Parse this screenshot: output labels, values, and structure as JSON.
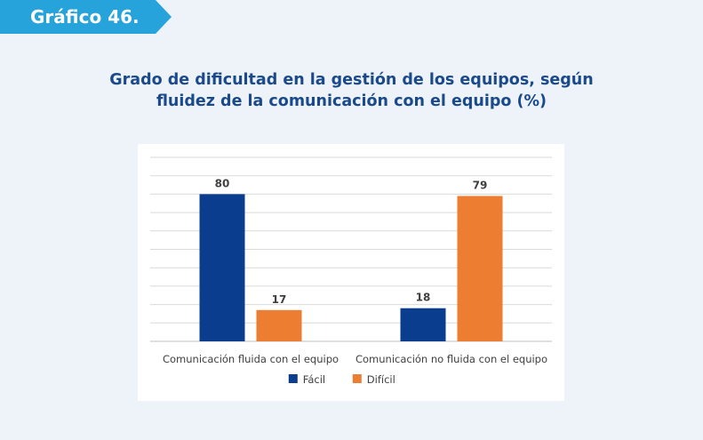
{
  "header": {
    "tag": "Gráfico 46."
  },
  "title_lines": [
    "Grado de dificultad en la gestión de los equipos, según",
    "fluidez de la comunicación con el equipo (%)"
  ],
  "colors": {
    "tag": "#27a3dc",
    "title": "#1a4a8c",
    "facil": "#0b3d8f",
    "dificil": "#ed7d31"
  },
  "chart_data": {
    "type": "bar",
    "categories": [
      "Comunicación fluida con el equipo",
      "Comunicación no fluida con el equipo"
    ],
    "series": [
      {
        "name": "Fácil",
        "values": [
          80,
          18
        ],
        "color": "#0b3d8f"
      },
      {
        "name": "Difícil",
        "values": [
          17,
          79
        ],
        "color": "#ed7d31"
      }
    ],
    "ylim": [
      0,
      100
    ],
    "grid": true,
    "legend_position": "bottom",
    "data_labels": true
  }
}
